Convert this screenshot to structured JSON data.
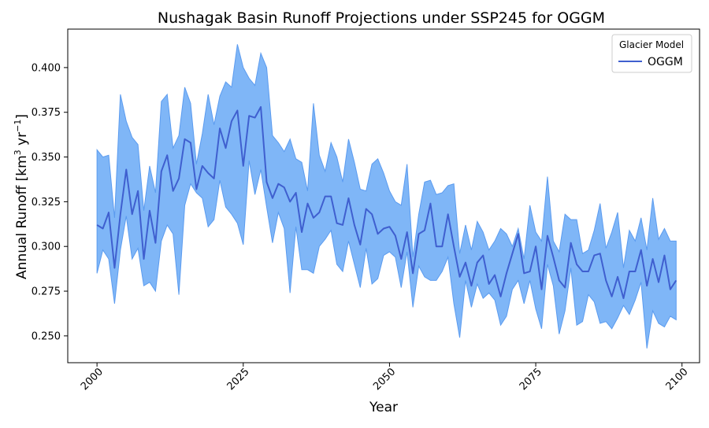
{
  "chart_data": {
    "type": "line",
    "title": "Nushagak Basin Runoff Projections under SSP245 for OGGM",
    "xlabel": "Year",
    "ylabel": "Annual Runoff [km",
    "ylabel_sup1": "3",
    "ylabel_mid": " yr",
    "ylabel_sup2": "−1",
    "ylabel_end": "]",
    "xlim": [
      1995,
      2103
    ],
    "ylim": [
      0.235,
      0.4215
    ],
    "xticks": [
      2000,
      2025,
      2050,
      2075,
      2100
    ],
    "yticks": [
      0.25,
      0.275,
      0.3,
      0.325,
      0.35,
      0.375,
      0.4
    ],
    "xtick_labels": [
      "2000",
      "2025",
      "2050",
      "2075",
      "2100"
    ],
    "ytick_labels": [
      "0.250",
      "0.275",
      "0.300",
      "0.325",
      "0.350",
      "0.375",
      "0.400"
    ],
    "legend": {
      "title": "Glacier Model",
      "placement": "top-right",
      "entries": [
        "OGGM"
      ]
    },
    "colors": {
      "line": "#3f5fcf",
      "band_fill": "#7fb6f7",
      "band_edge": "#5b9bef"
    },
    "x": [
      2000,
      2001,
      2002,
      2003,
      2004,
      2005,
      2006,
      2007,
      2008,
      2009,
      2010,
      2011,
      2012,
      2013,
      2014,
      2015,
      2016,
      2017,
      2018,
      2019,
      2020,
      2021,
      2022,
      2023,
      2024,
      2025,
      2026,
      2027,
      2028,
      2029,
      2030,
      2031,
      2032,
      2033,
      2034,
      2035,
      2036,
      2037,
      2038,
      2039,
      2040,
      2041,
      2042,
      2043,
      2044,
      2045,
      2046,
      2047,
      2048,
      2049,
      2050,
      2051,
      2052,
      2053,
      2054,
      2055,
      2056,
      2057,
      2058,
      2059,
      2060,
      2061,
      2062,
      2063,
      2064,
      2065,
      2066,
      2067,
      2068,
      2069,
      2070,
      2071,
      2072,
      2073,
      2074,
      2075,
      2076,
      2077,
      2078,
      2079,
      2080,
      2081,
      2082,
      2083,
      2084,
      2085,
      2086,
      2087,
      2088,
      2089,
      2090,
      2091,
      2092,
      2093,
      2094,
      2095,
      2096,
      2097,
      2098,
      2099
    ],
    "series": [
      {
        "name": "OGGM",
        "mean": [
          0.312,
          0.31,
          0.319,
          0.288,
          0.318,
          0.343,
          0.318,
          0.331,
          0.293,
          0.32,
          0.302,
          0.342,
          0.351,
          0.331,
          0.338,
          0.36,
          0.358,
          0.332,
          0.345,
          0.341,
          0.338,
          0.366,
          0.355,
          0.37,
          0.376,
          0.345,
          0.373,
          0.372,
          0.378,
          0.336,
          0.327,
          0.335,
          0.333,
          0.325,
          0.33,
          0.308,
          0.324,
          0.316,
          0.319,
          0.328,
          0.328,
          0.313,
          0.312,
          0.327,
          0.312,
          0.301,
          0.321,
          0.318,
          0.307,
          0.31,
          0.311,
          0.306,
          0.293,
          0.308,
          0.285,
          0.307,
          0.309,
          0.324,
          0.3,
          0.3,
          0.318,
          0.3,
          0.283,
          0.291,
          0.278,
          0.291,
          0.295,
          0.279,
          0.284,
          0.272,
          0.285,
          0.296,
          0.307,
          0.285,
          0.286,
          0.3,
          0.276,
          0.306,
          0.294,
          0.281,
          0.277,
          0.302,
          0.29,
          0.286,
          0.286,
          0.295,
          0.296,
          0.281,
          0.272,
          0.283,
          0.271,
          0.286,
          0.286,
          0.298,
          0.278,
          0.293,
          0.28,
          0.295,
          0.276,
          0.281
        ],
        "upper": [
          0.354,
          0.35,
          0.351,
          0.316,
          0.385,
          0.37,
          0.361,
          0.357,
          0.32,
          0.345,
          0.33,
          0.381,
          0.385,
          0.355,
          0.362,
          0.389,
          0.38,
          0.346,
          0.363,
          0.385,
          0.368,
          0.384,
          0.392,
          0.389,
          0.413,
          0.4,
          0.394,
          0.39,
          0.408,
          0.4,
          0.362,
          0.358,
          0.353,
          0.36,
          0.349,
          0.347,
          0.331,
          0.38,
          0.351,
          0.342,
          0.358,
          0.35,
          0.336,
          0.36,
          0.347,
          0.332,
          0.331,
          0.346,
          0.349,
          0.341,
          0.331,
          0.325,
          0.323,
          0.346,
          0.294,
          0.318,
          0.336,
          0.337,
          0.329,
          0.33,
          0.334,
          0.335,
          0.296,
          0.312,
          0.298,
          0.314,
          0.308,
          0.298,
          0.303,
          0.31,
          0.307,
          0.3,
          0.31,
          0.293,
          0.323,
          0.308,
          0.303,
          0.339,
          0.303,
          0.297,
          0.318,
          0.315,
          0.315,
          0.296,
          0.298,
          0.309,
          0.324,
          0.299,
          0.308,
          0.319,
          0.288,
          0.309,
          0.303,
          0.316,
          0.298,
          0.327,
          0.304,
          0.31,
          0.303,
          0.303
        ],
        "lower": [
          0.285,
          0.298,
          0.293,
          0.268,
          0.298,
          0.317,
          0.293,
          0.299,
          0.278,
          0.28,
          0.275,
          0.303,
          0.312,
          0.307,
          0.273,
          0.323,
          0.335,
          0.33,
          0.327,
          0.311,
          0.315,
          0.337,
          0.322,
          0.318,
          0.313,
          0.301,
          0.348,
          0.329,
          0.343,
          0.322,
          0.302,
          0.319,
          0.31,
          0.274,
          0.311,
          0.287,
          0.287,
          0.285,
          0.3,
          0.304,
          0.309,
          0.29,
          0.286,
          0.303,
          0.29,
          0.277,
          0.299,
          0.279,
          0.282,
          0.295,
          0.297,
          0.294,
          0.277,
          0.297,
          0.266,
          0.289,
          0.283,
          0.281,
          0.281,
          0.286,
          0.294,
          0.268,
          0.249,
          0.281,
          0.266,
          0.279,
          0.271,
          0.274,
          0.27,
          0.256,
          0.261,
          0.276,
          0.281,
          0.268,
          0.281,
          0.265,
          0.254,
          0.29,
          0.278,
          0.251,
          0.264,
          0.288,
          0.256,
          0.258,
          0.273,
          0.269,
          0.257,
          0.258,
          0.254,
          0.26,
          0.267,
          0.262,
          0.27,
          0.28,
          0.243,
          0.264,
          0.257,
          0.255,
          0.261,
          0.259
        ]
      }
    ]
  }
}
